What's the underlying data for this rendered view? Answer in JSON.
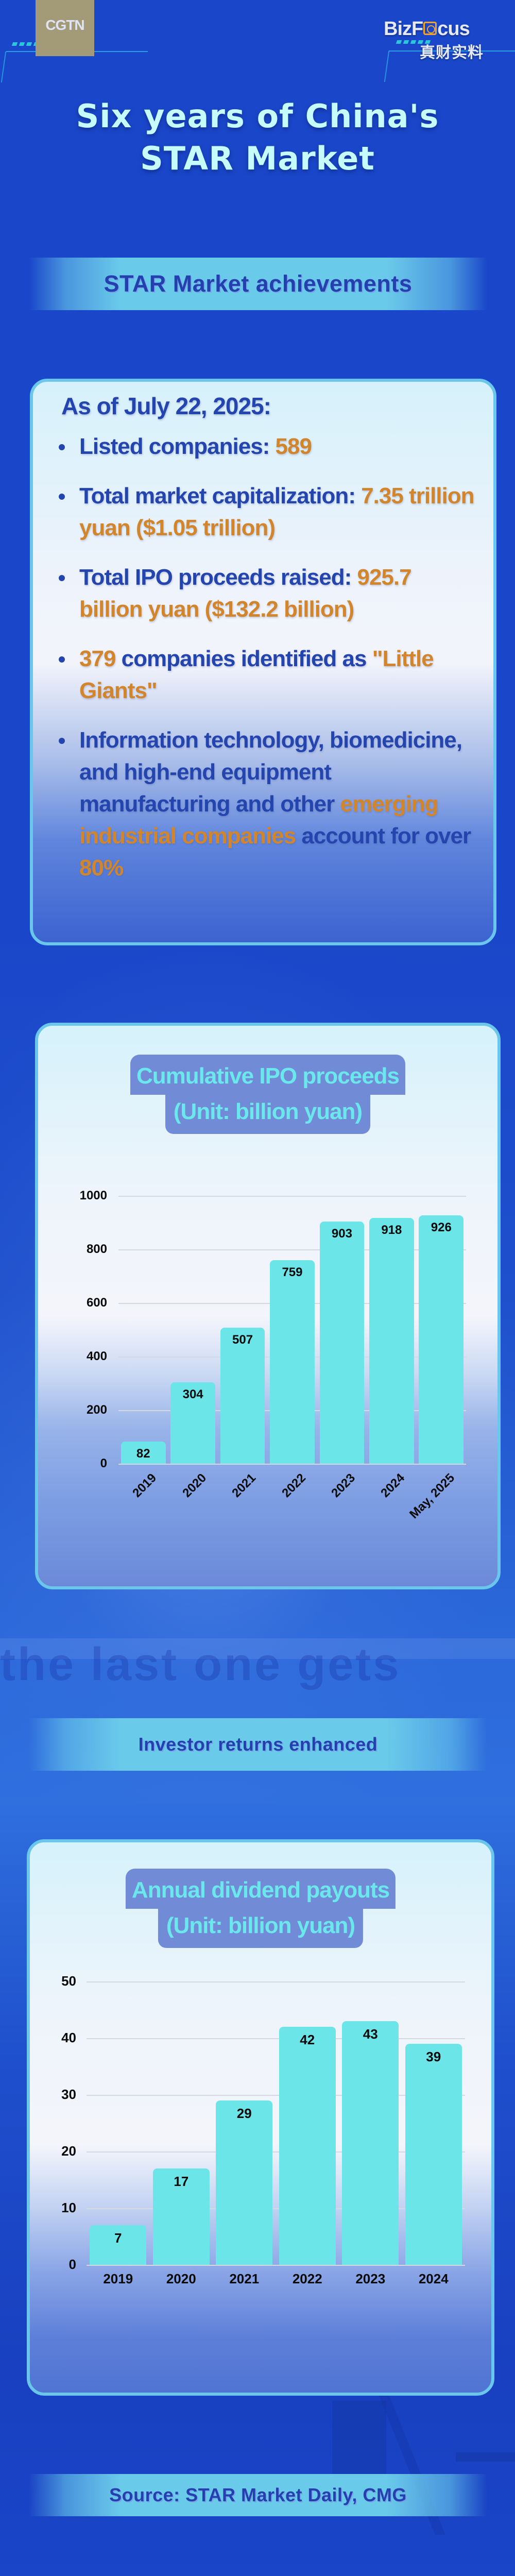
{
  "header": {
    "left_logo": "CGTN",
    "right_logo_en": "BizFocus",
    "right_logo_zh": "真财实料",
    "title_line1": "Six years of China's",
    "title_line2": "STAR Market"
  },
  "sections": {
    "achievements_title": "STAR Market achievements",
    "investor_title": "Investor returns enhanced",
    "source": "Source: STAR Market Daily, CMG"
  },
  "achievements": {
    "heading": "As of July 22, 2025:",
    "items": [
      {
        "pre": "Listed companies: ",
        "hl": "589",
        "post": "",
        "hl2": "",
        "post2": "",
        "hl3": ""
      },
      {
        "pre": "Total market capitalization: ",
        "hl": "7.35 trillion yuan ($1.05 trillion)",
        "post": "",
        "hl2": "",
        "post2": "",
        "hl3": ""
      },
      {
        "pre": "Total IPO proceeds raised: ",
        "hl": "925.7 billion yuan ($132.2 billion)",
        "post": "",
        "hl2": "",
        "post2": "",
        "hl3": ""
      },
      {
        "pre": "",
        "hl": "379",
        "post": " companies identified as ",
        "hl2": "\"Little Giants\"",
        "post2": "",
        "hl3": ""
      },
      {
        "pre": "Information technology, biomedicine, and high-end equipment manufacturing and other ",
        "hl": "emerging industrial companies",
        "post": " account for over ",
        "hl2": "80%",
        "post2": "",
        "hl3": ""
      }
    ]
  },
  "colors": {
    "background": "#1a47c9",
    "bar": "#6ce5e8",
    "highlight": "#d2852a",
    "text_blue": "#2545ae",
    "badge_bg": "#728bd7",
    "badge_text": "#6ae8ec",
    "banner": "#6acaea"
  },
  "chart_data": [
    {
      "type": "bar",
      "title": "Cumulative IPO proceeds",
      "subtitle": "(Unit: billion yuan)",
      "categories": [
        "2019",
        "2020",
        "2021",
        "2022",
        "2023",
        "2024",
        "May, 2025"
      ],
      "values": [
        82,
        304,
        507,
        759,
        903,
        918,
        926
      ],
      "yticks": [
        0,
        200,
        400,
        600,
        800,
        1000
      ],
      "ylim": [
        0,
        1000
      ],
      "xlabel": "",
      "ylabel": "",
      "grid": true,
      "xtick_rotation": -45,
      "data_labels": true
    },
    {
      "type": "bar",
      "title": "Annual dividend payouts",
      "subtitle": "(Unit: billion yuan)",
      "categories": [
        "2019",
        "2020",
        "2021",
        "2022",
        "2023",
        "2024"
      ],
      "values": [
        7,
        17,
        29,
        42,
        43,
        39
      ],
      "yticks": [
        0,
        10,
        20,
        30,
        40,
        50
      ],
      "ylim": [
        0,
        50
      ],
      "xlabel": "",
      "ylabel": "",
      "grid": true,
      "xtick_rotation": 0,
      "data_labels": true
    }
  ]
}
